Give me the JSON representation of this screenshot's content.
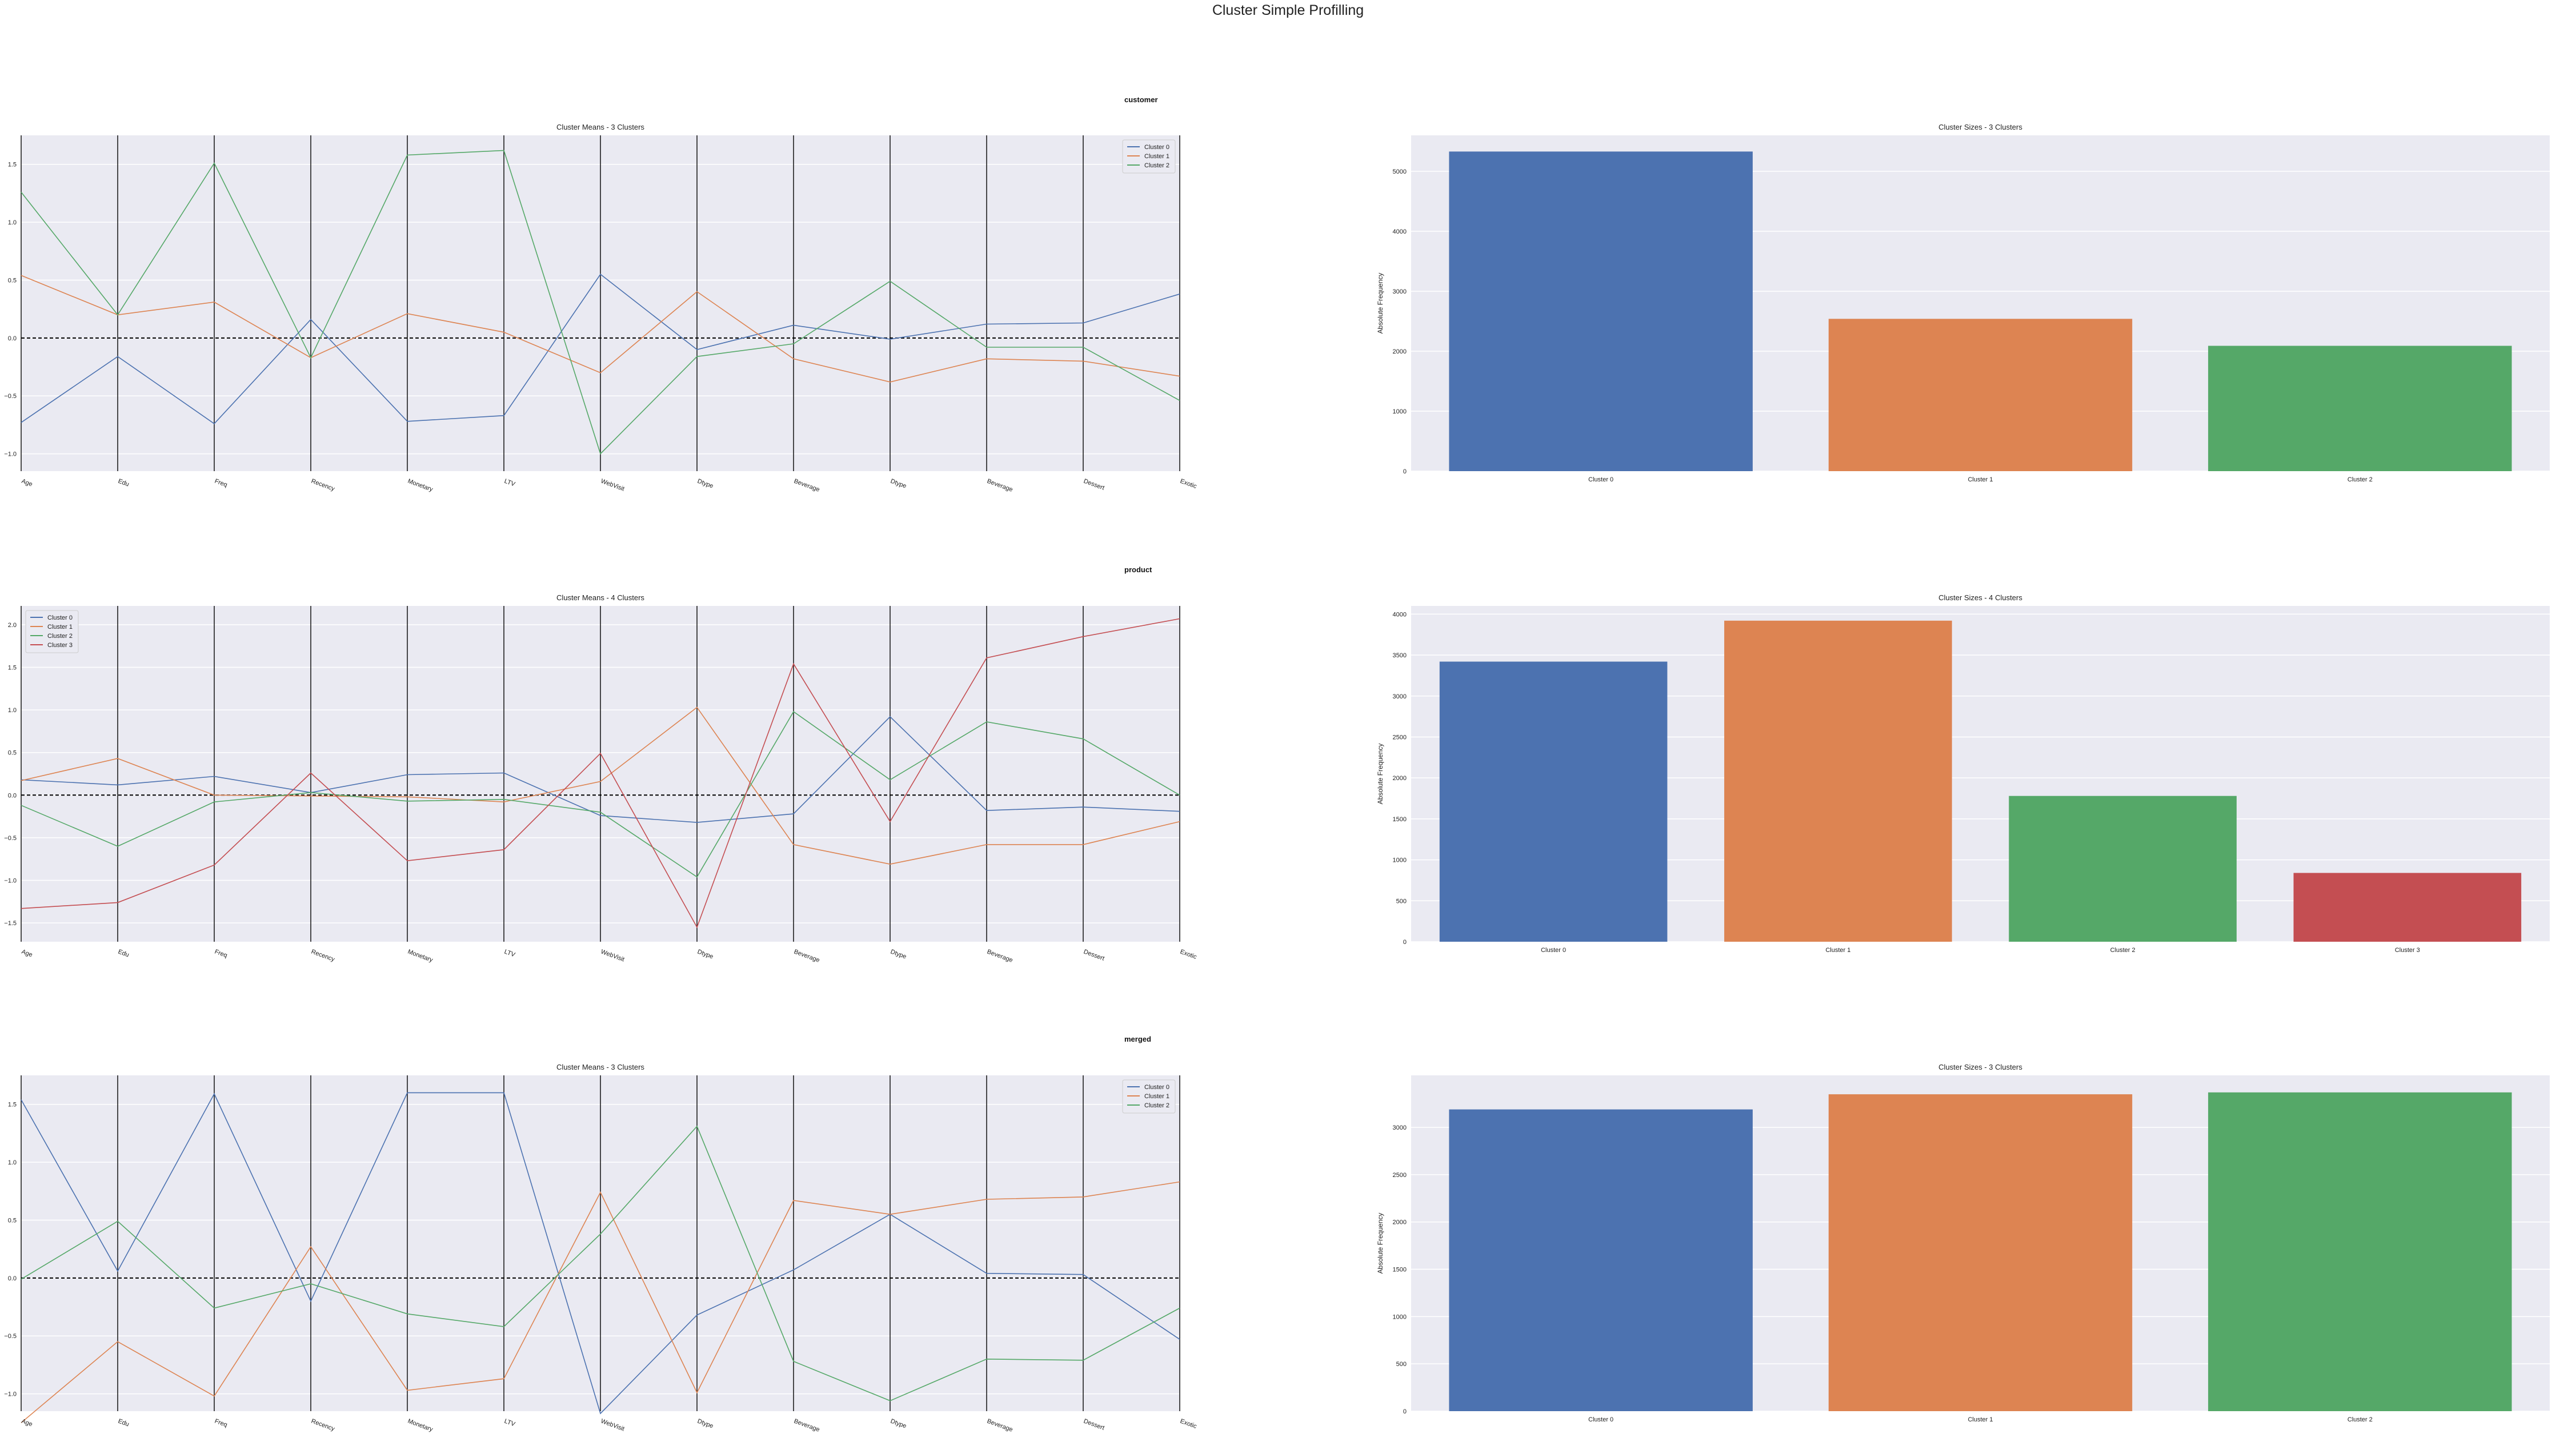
{
  "figure": {
    "suptitle": "Cluster Simple Profilling",
    "row_titles": [
      "customer",
      "product",
      "merged"
    ]
  },
  "colors": {
    "cluster0": "#4c72b0",
    "cluster1": "#dd8452",
    "cluster2": "#55a868",
    "cluster3": "#c44e52",
    "panel_bg": "#eaeaf2"
  },
  "chart_data": [
    {
      "type": "line",
      "title": "Cluster Means - 3 Clusters",
      "categories": [
        "Age",
        "Edu",
        "Freq",
        "Recency",
        "Monetary",
        "LTV",
        "WebVisit",
        "Dtype",
        "Beverage",
        "Dtype",
        "Beverage",
        "Dessert",
        "Exotic"
      ],
      "ylim": [
        -1.15,
        1.75
      ],
      "yticks": [
        -1.0,
        -0.5,
        0.0,
        0.5,
        1.0,
        1.5
      ],
      "legend": "top-right",
      "series": [
        {
          "name": "Cluster 0",
          "values": [
            -0.73,
            -0.16,
            -0.74,
            0.16,
            -0.72,
            -0.67,
            0.55,
            -0.1,
            0.11,
            -0.01,
            0.12,
            0.13,
            0.38
          ]
        },
        {
          "name": "Cluster 1",
          "values": [
            0.54,
            0.2,
            0.31,
            -0.17,
            0.21,
            0.05,
            -0.3,
            0.4,
            -0.18,
            -0.38,
            -0.18,
            -0.2,
            -0.33
          ]
        },
        {
          "name": "Cluster 2",
          "values": [
            1.26,
            0.2,
            1.51,
            -0.17,
            1.58,
            1.62,
            -1.0,
            -0.16,
            -0.05,
            0.49,
            -0.08,
            -0.08,
            -0.54
          ]
        }
      ]
    },
    {
      "type": "bar",
      "title": "Cluster Sizes - 3 Clusters",
      "categories": [
        "Cluster 0",
        "Cluster 1",
        "Cluster 2"
      ],
      "values": [
        5330,
        2540,
        2090
      ],
      "ylim": [
        0,
        5600
      ],
      "yticks": [
        0,
        1000,
        2000,
        3000,
        4000,
        5000
      ],
      "ylabel": "Absolute Frequency"
    },
    {
      "type": "line",
      "title": "Cluster Means - 4 Clusters",
      "categories": [
        "Age",
        "Edu",
        "Freq",
        "Recency",
        "Monetary",
        "LTV",
        "WebVisit",
        "Dtype",
        "Beverage",
        "Dtype",
        "Beverage",
        "Dessert",
        "Exotic"
      ],
      "ylim": [
        -1.72,
        2.22
      ],
      "yticks": [
        -1.5,
        -1.0,
        -0.5,
        0.0,
        0.5,
        1.0,
        1.5,
        2.0
      ],
      "legend": "top-left",
      "series": [
        {
          "name": "Cluster 0",
          "values": [
            0.18,
            0.12,
            0.22,
            0.03,
            0.24,
            0.26,
            -0.24,
            -0.32,
            -0.22,
            0.92,
            -0.18,
            -0.14,
            -0.19
          ]
        },
        {
          "name": "Cluster 1",
          "values": [
            0.17,
            0.43,
            0.0,
            -0.01,
            -0.02,
            -0.08,
            0.16,
            1.03,
            -0.58,
            -0.81,
            -0.58,
            -0.58,
            -0.31
          ]
        },
        {
          "name": "Cluster 2",
          "values": [
            -0.12,
            -0.6,
            -0.08,
            0.03,
            -0.07,
            -0.05,
            -0.2,
            -0.96,
            0.98,
            0.18,
            0.86,
            0.66,
            0.0
          ]
        },
        {
          "name": "Cluster 3",
          "values": [
            -1.33,
            -1.26,
            -0.82,
            0.26,
            -0.77,
            -0.64,
            0.49,
            -1.55,
            1.54,
            -0.31,
            1.61,
            1.86,
            2.07
          ]
        }
      ]
    },
    {
      "type": "bar",
      "title": "Cluster Sizes - 4 Clusters",
      "categories": [
        "Cluster 0",
        "Cluster 1",
        "Cluster 2",
        "Cluster 3"
      ],
      "values": [
        3420,
        3920,
        1780,
        840
      ],
      "ylim": [
        0,
        4100
      ],
      "yticks": [
        0,
        500,
        1000,
        1500,
        2000,
        2500,
        3000,
        3500,
        4000
      ],
      "ylabel": "Absolute Frequency"
    },
    {
      "type": "line",
      "title": "Cluster Means - 3 Clusters",
      "categories": [
        "Age",
        "Edu",
        "Freq",
        "Recency",
        "Monetary",
        "LTV",
        "WebVisit",
        "Dtype",
        "Beverage",
        "Dtype",
        "Beverage",
        "Dessert",
        "Exotic"
      ],
      "ylim": [
        -1.15,
        1.75
      ],
      "yticks": [
        -1.0,
        -0.5,
        0.0,
        0.5,
        1.0,
        1.5
      ],
      "legend": "top-right",
      "series": [
        {
          "name": "Cluster 0",
          "values": [
            1.54,
            0.06,
            1.59,
            -0.2,
            1.6,
            1.6,
            -1.17,
            -0.32,
            0.07,
            0.55,
            0.04,
            0.03,
            -0.53
          ]
        },
        {
          "name": "Cluster 1",
          "values": [
            -1.25,
            -0.55,
            -1.02,
            0.27,
            -0.97,
            -0.87,
            0.74,
            -0.99,
            0.67,
            0.55,
            0.68,
            0.7,
            0.83
          ]
        },
        {
          "name": "Cluster 2",
          "values": [
            -0.01,
            0.49,
            -0.26,
            -0.05,
            -0.31,
            -0.42,
            0.38,
            1.31,
            -0.72,
            -1.06,
            -0.7,
            -0.71,
            -0.26
          ]
        }
      ]
    },
    {
      "type": "bar",
      "title": "Cluster Sizes - 3 Clusters",
      "categories": [
        "Cluster 0",
        "Cluster 1",
        "Cluster 2"
      ],
      "values": [
        3190,
        3350,
        3370
      ],
      "ylim": [
        0,
        3550
      ],
      "yticks": [
        0,
        500,
        1000,
        1500,
        2000,
        2500,
        3000
      ],
      "ylabel": "Absolute Frequency"
    }
  ]
}
